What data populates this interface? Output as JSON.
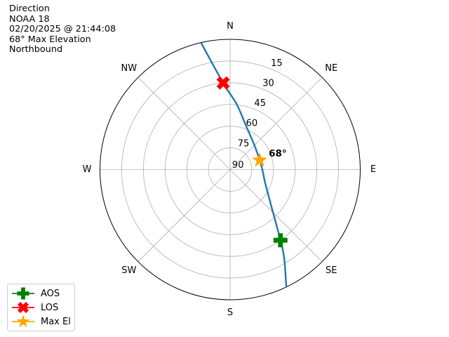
{
  "header": {
    "lines": [
      "Direction",
      "NOAA 18",
      "02/20/2025 @ 21:44:08",
      "68° Max Elevation",
      "Northbound"
    ]
  },
  "colors": {
    "track": "#1f77b4",
    "aos": "#008000",
    "los": "#ff0000",
    "max_el": "#ffa500",
    "grid": "#b0b0b0",
    "outline": "#000000",
    "legend_border": "#cccccc"
  },
  "chart_data": {
    "type": "line",
    "projection": "polar",
    "title": "Direction",
    "satellite": "NOAA 18",
    "timestamp": "02/20/2025 @ 21:44:08",
    "max_elevation_deg": 68,
    "heading": "Northbound",
    "grid": true,
    "angular_axis": {
      "labels": [
        "N",
        "NE",
        "E",
        "SE",
        "S",
        "SW",
        "W",
        "NW"
      ],
      "degrees": [
        0,
        45,
        90,
        135,
        180,
        225,
        270,
        315
      ],
      "zero": "N",
      "direction": "clockwise"
    },
    "radial_axis": {
      "unit": "elevation_degrees",
      "ticks": [
        15,
        30,
        45,
        60,
        75,
        90
      ],
      "outer_value": 0,
      "center_value": 90,
      "label_azimuth_deg": 22.5
    },
    "track": {
      "name": "satellite-pass-track",
      "color": "#1f77b4",
      "points_az_el": [
        [
          154.2,
          0.8
        ],
        [
          148.5,
          18.5
        ],
        [
          144.5,
          30
        ],
        [
          131.5,
          52
        ],
        [
          111,
          64
        ],
        [
          90,
          67.7
        ],
        [
          72.5,
          68.6
        ],
        [
          46,
          66.4
        ],
        [
          19,
          57.2
        ],
        [
          5.5,
          44.3
        ],
        [
          355.4,
          30
        ],
        [
          347.2,
          0.8
        ]
      ]
    },
    "markers": [
      {
        "id": "aos",
        "label": "AOS",
        "shape": "plus",
        "color": "#008000",
        "az": 144.5,
        "el": 30
      },
      {
        "id": "los",
        "label": "LOS",
        "shape": "x",
        "color": "#ff0000",
        "az": 355.4,
        "el": 30
      },
      {
        "id": "maxel",
        "label": "Max El",
        "shape": "star",
        "color": "#ffa500",
        "az": 72.5,
        "el": 68.6,
        "annotation": "68°"
      }
    ],
    "legend": {
      "position": "lower-left",
      "entries": [
        "AOS",
        "LOS",
        "Max El"
      ]
    }
  }
}
